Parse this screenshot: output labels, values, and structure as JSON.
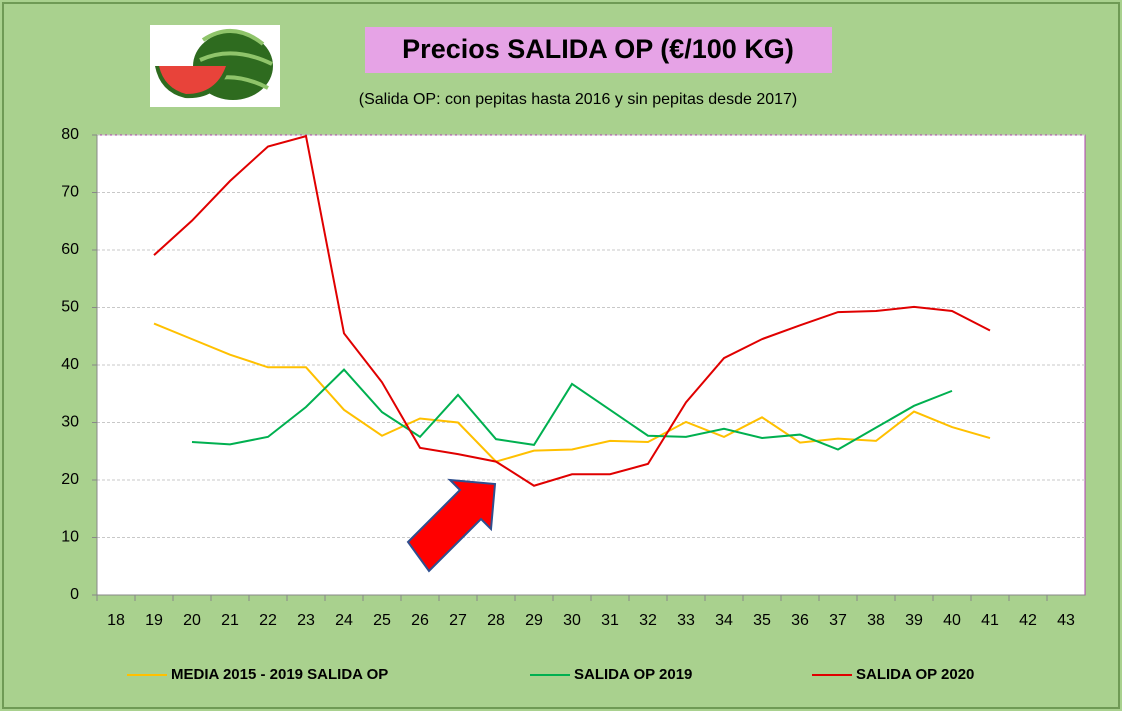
{
  "chart_data": {
    "type": "line",
    "title": "Precios SALIDA OP (€/100 KG)",
    "subtitle": "(Salida OP: con pepitas hasta 2016 y sin pepitas desde 2017)",
    "categories": [
      "18",
      "19",
      "20",
      "21",
      "22",
      "23",
      "24",
      "25",
      "26",
      "27",
      "28",
      "29",
      "30",
      "31",
      "32",
      "33",
      "34",
      "35",
      "36",
      "37",
      "38",
      "39",
      "40",
      "41",
      "42",
      "43"
    ],
    "series": [
      {
        "name": "MEDIA 2015 - 2019 SALIDA OP",
        "color": "#ffc000",
        "values": [
          null,
          47.2,
          44.5,
          41.8,
          39.6,
          39.6,
          32.2,
          27.7,
          30.7,
          30.0,
          23.2,
          25.1,
          25.3,
          26.8,
          26.6,
          30.1,
          27.5,
          30.9,
          26.5,
          27.2,
          26.8,
          31.9,
          29.2,
          27.3,
          null,
          null
        ]
      },
      {
        "name": "SALIDA OP 2019",
        "color": "#00b050",
        "values": [
          null,
          null,
          26.6,
          26.2,
          27.5,
          32.7,
          39.2,
          31.8,
          27.5,
          34.8,
          27.1,
          26.1,
          36.7,
          32.2,
          27.7,
          27.5,
          28.9,
          27.3,
          27.9,
          25.3,
          29.1,
          32.9,
          35.5,
          null,
          null,
          null
        ]
      },
      {
        "name": "SALIDA OP 2020",
        "color": "#e00000",
        "values": [
          null,
          59.1,
          65.1,
          72.0,
          78.0,
          79.8,
          45.5,
          37.0,
          25.6,
          24.5,
          23.2,
          19.0,
          21.0,
          21.0,
          22.8,
          33.5,
          41.2,
          44.5,
          46.9,
          49.2,
          49.4,
          50.1,
          49.4,
          46.0,
          null,
          null
        ]
      }
    ],
    "ylim": [
      0,
      80
    ],
    "yticks": [
      0,
      10,
      20,
      30,
      40,
      50,
      60,
      70,
      80
    ],
    "grid": true
  }
}
